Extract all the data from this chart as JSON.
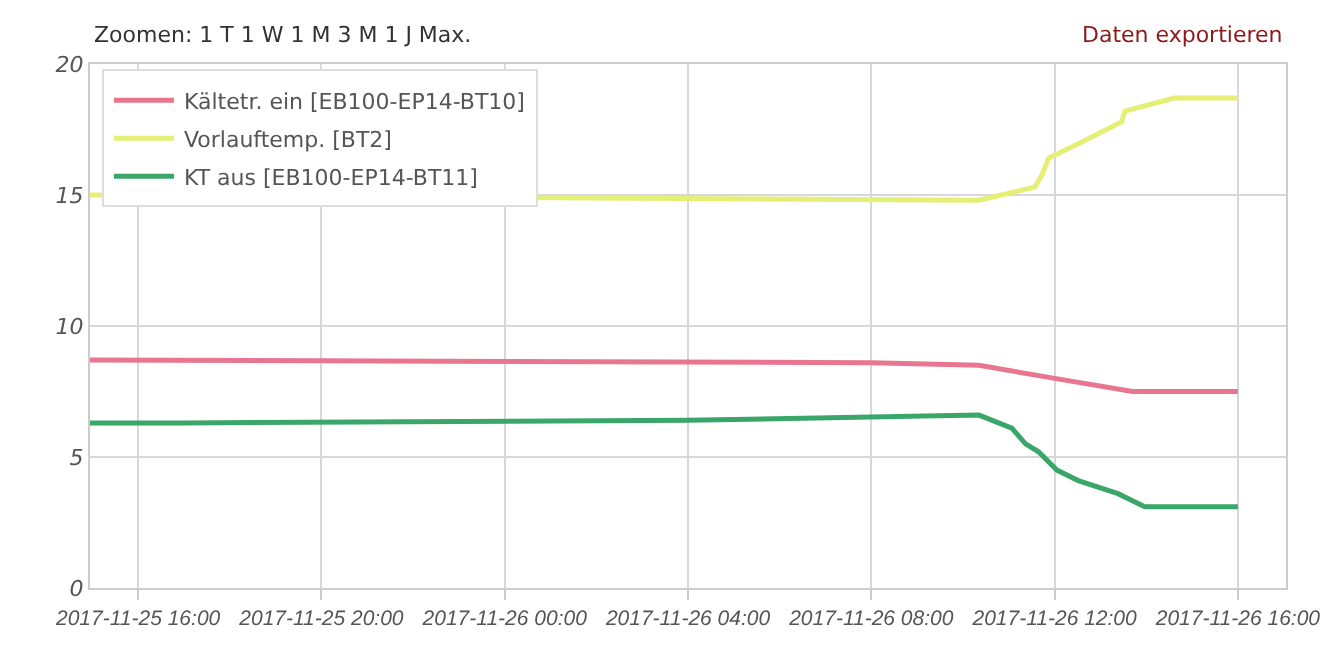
{
  "chart_data": {
    "type": "line",
    "annotations": [
      "Zoomen: 1 T 1 W 1 M 3 M 1 J Max.",
      "Daten exportieren"
    ],
    "xlim": [
      "2017-11-25T14:57",
      "2017-11-26T17:03"
    ],
    "xticks": [
      {
        "value": "2017-11-25T16:00",
        "label": "2017-11-25 16:00"
      },
      {
        "value": "2017-11-25T20:00",
        "label": "2017-11-25 20:00"
      },
      {
        "value": "2017-11-26T00:00",
        "label": "2017-11-26 00:00"
      },
      {
        "value": "2017-11-26T04:00",
        "label": "2017-11-26 04:00"
      },
      {
        "value": "2017-11-26T08:00",
        "label": "2017-11-26 08:00"
      },
      {
        "value": "2017-11-26T12:00",
        "label": "2017-11-26 12:00"
      },
      {
        "value": "2017-11-26T16:00",
        "label": "2017-11-26 16:00"
      }
    ],
    "ylim": [
      0,
      20
    ],
    "yticks": [
      0,
      5,
      10,
      15,
      20
    ],
    "grid": true,
    "legend": "top left",
    "series": [
      {
        "name": "Kältetr. ein [EB100-EP14-BT10]",
        "color": "#e8768f",
        "x": [
          "2017-11-25T14:57",
          "2017-11-26T08:00",
          "2017-11-26T10:21",
          "2017-11-26T12:00",
          "2017-11-26T13:42",
          "2017-11-26T16:00"
        ],
        "values": [
          8.7,
          8.6,
          8.5,
          8.0,
          7.5,
          7.5
        ]
      },
      {
        "name": "Vorlauftemp. [BT2]",
        "color": "#e3f075",
        "x": [
          "2017-11-25T14:57",
          "2017-11-26T10:21",
          "2017-11-26T11:34",
          "2017-11-26T11:44",
          "2017-11-26T11:52",
          "2017-11-26T12:27",
          "2017-11-26T13:28",
          "2017-11-26T13:32",
          "2017-11-26T14:37",
          "2017-11-26T16:00"
        ],
        "values": [
          15.0,
          14.8,
          15.3,
          15.8,
          16.4,
          16.9,
          17.8,
          18.2,
          18.7,
          18.7
        ]
      },
      {
        "name": "KT aus [EB100-EP14-BT11]",
        "color": "#3aa66a",
        "x": [
          "2017-11-25T14:57",
          "2017-11-25T17:00",
          "2017-11-26T04:00",
          "2017-11-26T10:21",
          "2017-11-26T11:04",
          "2017-11-26T11:22",
          "2017-11-26T11:39",
          "2017-11-26T12:03",
          "2017-11-26T12:31",
          "2017-11-26T13:23",
          "2017-11-26T13:58",
          "2017-11-26T16:00"
        ],
        "values": [
          6.3,
          6.3,
          6.4,
          6.6,
          6.1,
          5.5,
          5.2,
          4.5,
          4.1,
          3.6,
          3.1,
          3.1
        ]
      }
    ]
  }
}
